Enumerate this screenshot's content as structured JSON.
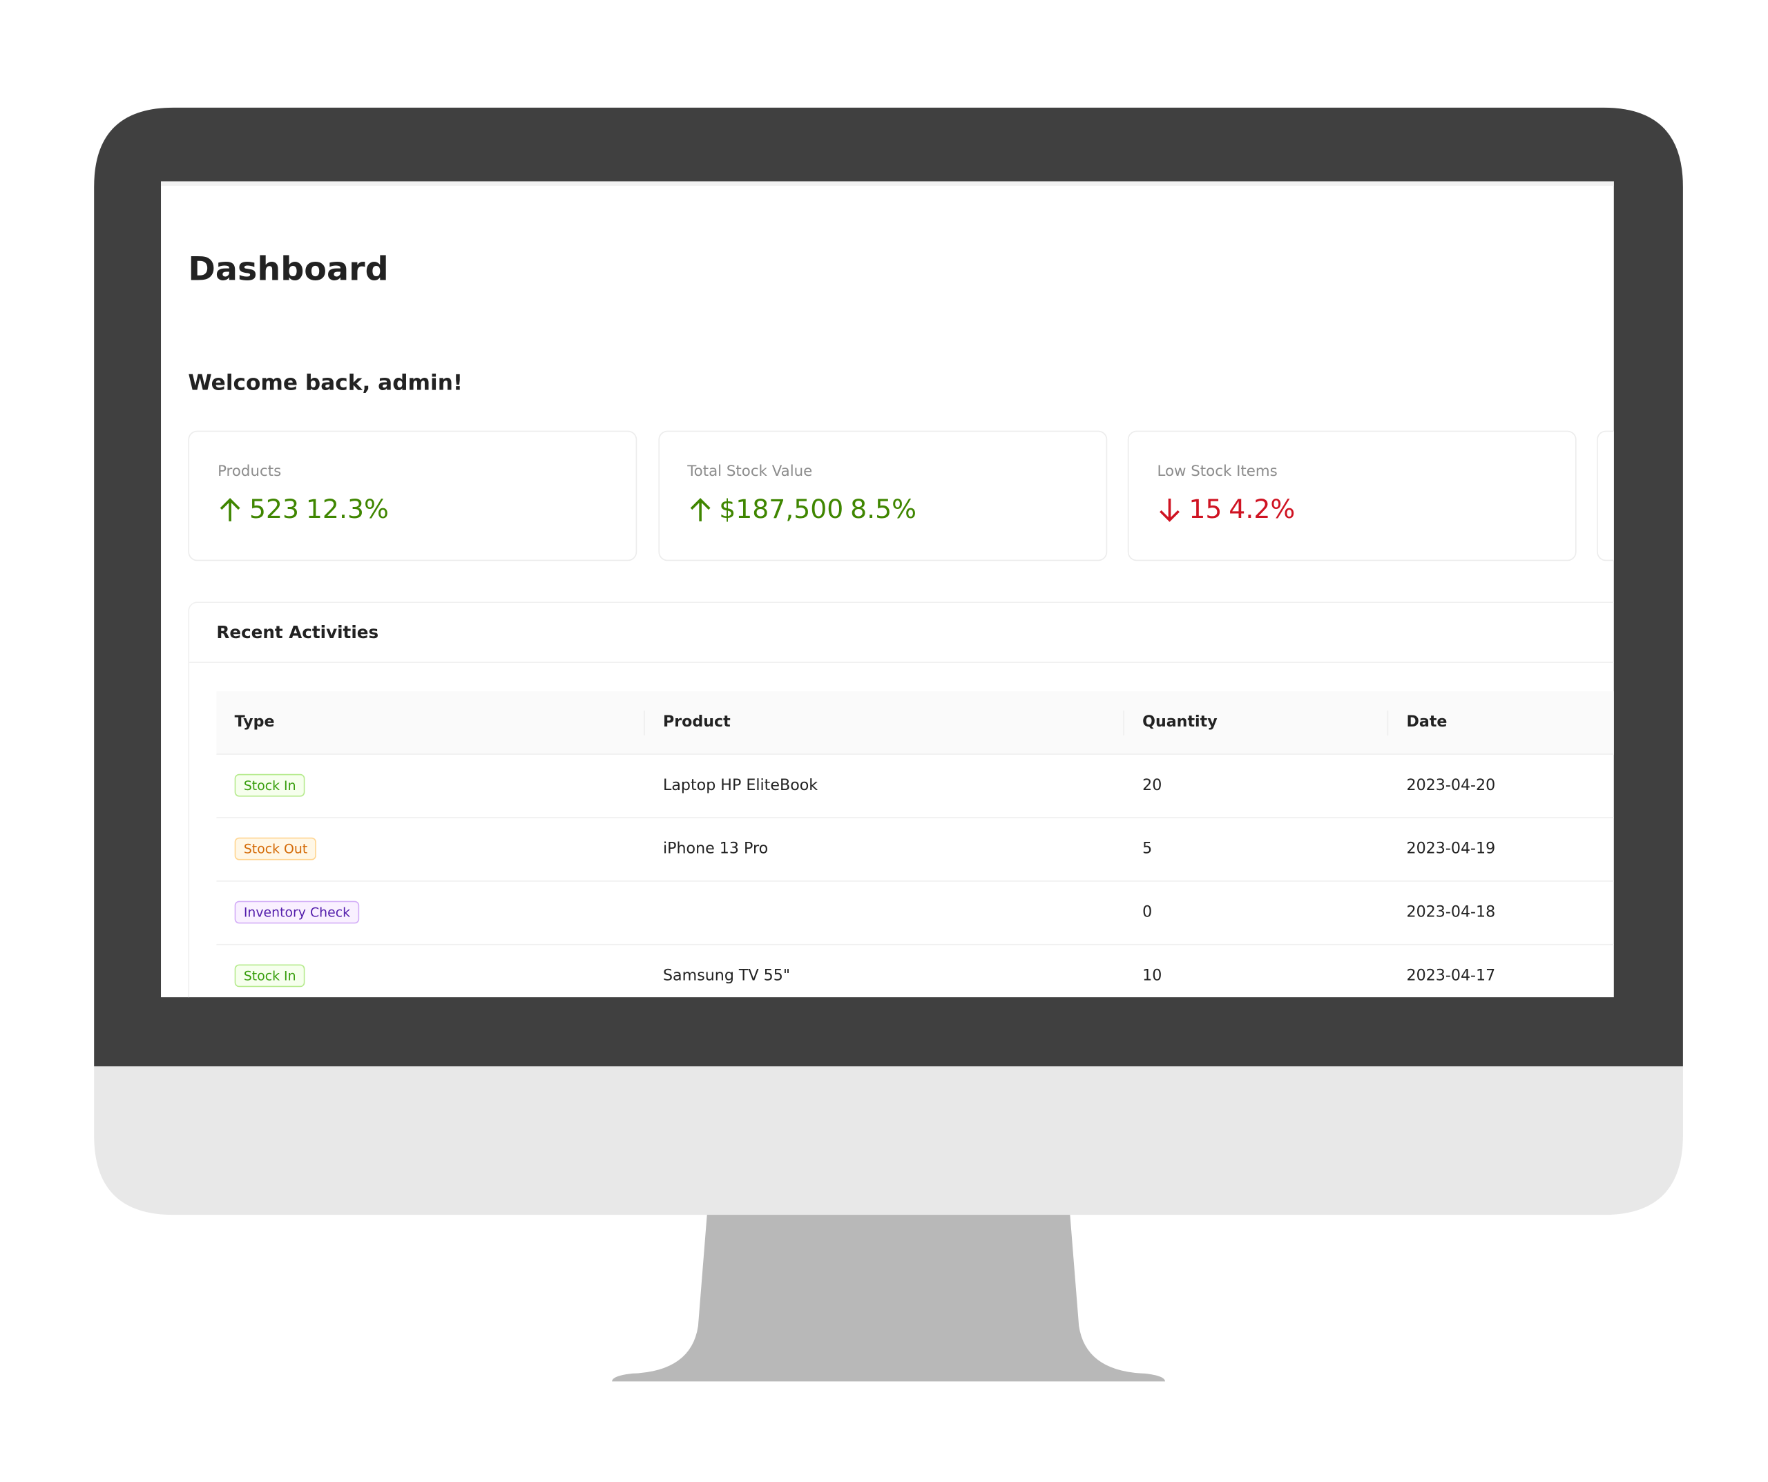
{
  "header": {
    "title": "Dashboard",
    "welcome": "Welcome back, admin!"
  },
  "stats": [
    {
      "label": "Products",
      "value": "523",
      "change": "12.3%",
      "trend": "up",
      "color": "#3f8600"
    },
    {
      "label": "Total Stock Value",
      "value": "$187,500",
      "change": "8.5%",
      "trend": "up",
      "color": "#3f8600"
    },
    {
      "label": "Low Stock Items",
      "value": "15",
      "change": "4.2%",
      "trend": "down",
      "color": "#cf1322"
    }
  ],
  "activities": {
    "title": "Recent Activities",
    "columns": [
      "Type",
      "Product",
      "Quantity",
      "Date"
    ],
    "rows": [
      {
        "type": "Stock In",
        "tag_color": "green",
        "product": "Laptop HP EliteBook",
        "quantity": 20,
        "date": "2023-04-20"
      },
      {
        "type": "Stock Out",
        "tag_color": "orange",
        "product": "iPhone 13 Pro",
        "quantity": 5,
        "date": "2023-04-19"
      },
      {
        "type": "Inventory Check",
        "tag_color": "purple",
        "product": null,
        "quantity": 0,
        "date": "2023-04-18"
      },
      {
        "type": "Stock In",
        "tag_color": "green",
        "product": "Samsung TV 55\"",
        "quantity": 10,
        "date": "2023-04-17"
      }
    ]
  }
}
